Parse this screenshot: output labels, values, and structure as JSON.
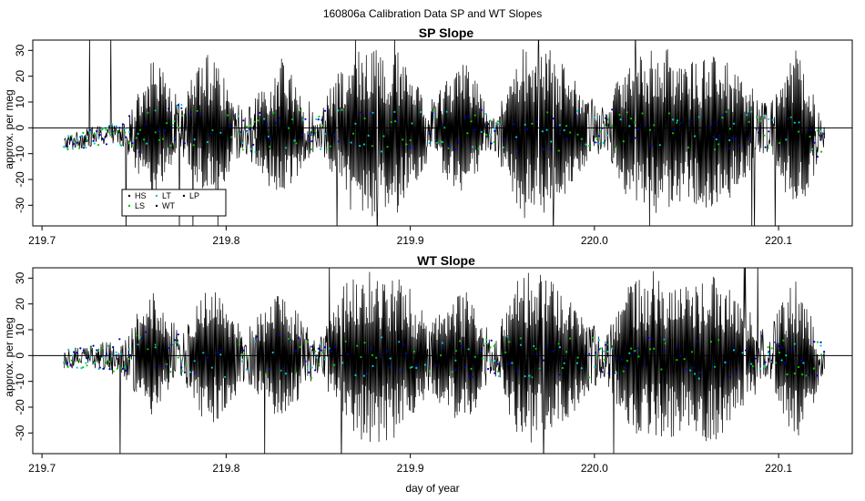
{
  "figure": {
    "title": "160806a   Calibration Data SP and WT Slopes",
    "xlabel": "day of year"
  },
  "chart_data": [
    {
      "type": "line",
      "title": "SP Slope",
      "ylabel": "approx. per meg",
      "xlim": [
        219.695,
        220.14
      ],
      "ylim": [
        -38,
        34
      ],
      "xticks": [
        219.7,
        219.8,
        219.9,
        220.0,
        220.1
      ],
      "xtick_labels": [
        "219.7",
        "219.8",
        "219.9",
        "220.0",
        "220.1"
      ],
      "yticks": [
        -30,
        -20,
        -10,
        0,
        10,
        20,
        30
      ],
      "ytick_labels": [
        "-30",
        "-20",
        "-10",
        "0",
        "10",
        "20",
        "30"
      ],
      "reference_line_y": 0,
      "data_range_x": [
        219.712,
        220.125
      ],
      "legend": {
        "position": "bottom-left",
        "entries": [
          {
            "label": "HS",
            "color": "#000000"
          },
          {
            "label": "LS",
            "color": "#00cc00"
          },
          {
            "label": "LT",
            "color": "#00cccc"
          },
          {
            "label": "WT",
            "color": "#000000"
          },
          {
            "label": "LP",
            "color": "#000000"
          }
        ]
      },
      "series": [
        {
          "color": "#000000",
          "role": "trace"
        },
        {
          "color": "#0000cc",
          "role": "points"
        },
        {
          "color": "#00cc00",
          "role": "points"
        },
        {
          "color": "#00cccc",
          "role": "points"
        }
      ],
      "approx_envelope": {
        "x": [
          219.712,
          219.73,
          219.745,
          219.76,
          219.775,
          219.79,
          219.81,
          219.83,
          219.85,
          219.865,
          219.88,
          219.895,
          219.91,
          219.93,
          219.945,
          219.96,
          219.975,
          219.99,
          220.005,
          220.02,
          220.035,
          220.05,
          220.065,
          220.08,
          220.095,
          220.11,
          220.125
        ],
        "amplitude": [
          3,
          4,
          5,
          28,
          10,
          30,
          8,
          28,
          6,
          30,
          34,
          32,
          12,
          28,
          6,
          34,
          32,
          20,
          8,
          30,
          34,
          26,
          34,
          20,
          10,
          34,
          4
        ],
        "center": [
          -6,
          -3,
          -3,
          0,
          1,
          0,
          -2,
          -1,
          -1,
          -1,
          -2,
          -1,
          -1,
          -1,
          -1,
          -2,
          -1,
          -1,
          0,
          -1,
          -1,
          -1,
          -2,
          -1,
          0,
          -2,
          -4
        ]
      }
    },
    {
      "type": "line",
      "title": "WT Slope",
      "ylabel": "approx. per meg",
      "xlim": [
        219.695,
        220.14
      ],
      "ylim": [
        -38,
        34
      ],
      "xticks": [
        219.7,
        219.8,
        219.9,
        220.0,
        220.1
      ],
      "xtick_labels": [
        "219.7",
        "219.8",
        "219.9",
        "220.0",
        "220.1"
      ],
      "yticks": [
        -30,
        -20,
        -10,
        0,
        10,
        20,
        30
      ],
      "ytick_labels": [
        "-30",
        "-20",
        "-10",
        "0",
        "10",
        "20",
        "30"
      ],
      "reference_line_y": 0,
      "data_range_x": [
        219.712,
        220.125
      ],
      "series": [
        {
          "color": "#000000",
          "role": "trace"
        },
        {
          "color": "#0000cc",
          "role": "points"
        },
        {
          "color": "#00cc00",
          "role": "points"
        },
        {
          "color": "#00cccc",
          "role": "points"
        }
      ],
      "approx_envelope": {
        "x": [
          219.712,
          219.73,
          219.745,
          219.76,
          219.775,
          219.79,
          219.81,
          219.83,
          219.85,
          219.865,
          219.88,
          219.895,
          219.91,
          219.93,
          219.945,
          219.96,
          219.975,
          219.99,
          220.005,
          220.02,
          220.035,
          220.05,
          220.065,
          220.08,
          220.095,
          220.11,
          220.125
        ],
        "amplitude": [
          4,
          5,
          8,
          26,
          8,
          30,
          10,
          26,
          6,
          30,
          34,
          32,
          14,
          28,
          6,
          34,
          32,
          20,
          8,
          30,
          34,
          28,
          34,
          20,
          10,
          34,
          4
        ],
        "center": [
          -1,
          0,
          -1,
          2,
          1,
          0,
          -1,
          0,
          -1,
          -1,
          -1,
          0,
          -1,
          -1,
          0,
          -1,
          0,
          -1,
          0,
          -1,
          0,
          -1,
          -1,
          0,
          0,
          -2,
          -3
        ]
      }
    }
  ]
}
